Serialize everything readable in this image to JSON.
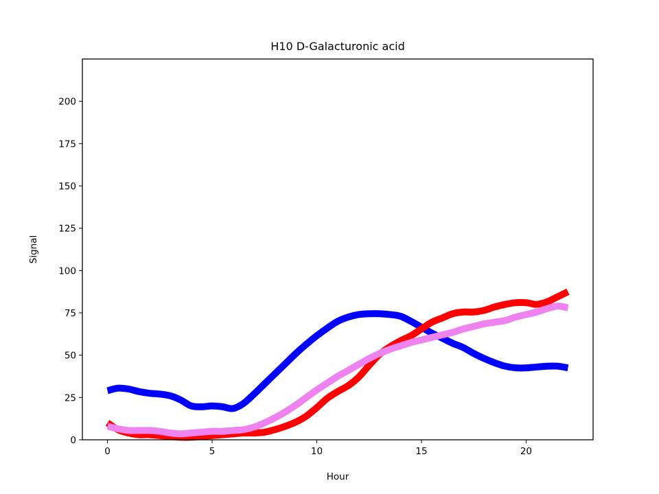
{
  "chart_data": {
    "type": "line",
    "title": "H10 D-Galacturonic acid",
    "xlabel": "Hour",
    "ylabel": "Signal",
    "xlim": [
      -1.2,
      23.2
    ],
    "ylim": [
      0,
      225
    ],
    "xticks": [
      0,
      5,
      10,
      15,
      20
    ],
    "yticks": [
      0,
      25,
      50,
      75,
      100,
      125,
      150,
      175,
      200
    ],
    "grid": false,
    "legend": "none",
    "series": [
      {
        "color": "#0000ff",
        "x": [
          0,
          0.5,
          1,
          1.5,
          2,
          2.5,
          3,
          3.5,
          4,
          4.5,
          5,
          5.5,
          6,
          6.5,
          7,
          7.5,
          8,
          8.5,
          9,
          9.5,
          10,
          10.5,
          11,
          11.5,
          12,
          12.5,
          13,
          13.5,
          14,
          14.5,
          15,
          15.5,
          16,
          16.5,
          17,
          17.5,
          18,
          18.5,
          19,
          19.5,
          20,
          20.5,
          21,
          21.5,
          22
        ],
        "values": [
          29,
          30.5,
          30,
          28.5,
          27.5,
          27,
          26,
          23.5,
          20,
          19.5,
          20,
          19.5,
          18.5,
          21.5,
          27,
          33,
          39,
          45,
          51,
          56.5,
          61.5,
          66,
          70,
          72.5,
          74,
          74.5,
          74.5,
          74,
          73,
          70,
          66.5,
          63,
          60,
          57,
          54.5,
          51,
          48,
          45.5,
          43.5,
          42.5,
          42.5,
          43,
          43.5,
          43.5,
          42.5
        ]
      },
      {
        "color": "#ff0000",
        "x": [
          0,
          0.5,
          1,
          1.5,
          2,
          2.5,
          3,
          3.5,
          4,
          4.5,
          5,
          5.5,
          6,
          6.5,
          7,
          7.5,
          8,
          8.5,
          9,
          9.5,
          10,
          10.5,
          11,
          11.5,
          12,
          12.5,
          13,
          13.5,
          14,
          14.5,
          15,
          15.5,
          16,
          16.5,
          17,
          17.5,
          18,
          18.5,
          19,
          19.5,
          20,
          20.5,
          21,
          21.5,
          22
        ],
        "values": [
          10,
          6,
          4,
          3,
          3,
          2.5,
          2,
          1.5,
          1.5,
          2,
          2.5,
          3,
          3.5,
          4,
          4,
          4.5,
          6,
          8,
          10.5,
          14,
          19,
          24.5,
          28.5,
          32,
          37,
          44,
          50.5,
          55,
          58.5,
          61.5,
          65.5,
          69.5,
          72,
          74.5,
          75.5,
          75.5,
          76.5,
          78.5,
          80,
          81,
          81,
          80,
          81.5,
          84.5,
          87.5
        ]
      },
      {
        "color": "#ee82ee",
        "x": [
          0,
          0.5,
          1,
          1.5,
          2,
          2.5,
          3,
          3.5,
          4,
          4.5,
          5,
          5.5,
          6,
          6.5,
          7,
          7.5,
          8,
          8.5,
          9,
          9.5,
          10,
          10.5,
          11,
          11.5,
          12,
          12.5,
          13,
          13.5,
          14,
          14.5,
          15,
          15.5,
          16,
          16.5,
          17,
          17.5,
          18,
          18.5,
          19,
          19.5,
          20,
          20.5,
          21,
          21.5,
          22
        ],
        "values": [
          8,
          6.5,
          5.5,
          5.5,
          5.5,
          5,
          4,
          3.5,
          4,
          4.5,
          5,
          5,
          5.5,
          6,
          7.5,
          10,
          13,
          16.5,
          20.5,
          25,
          29.5,
          33.5,
          37.5,
          41,
          44.5,
          48,
          51,
          53.5,
          55.5,
          57.5,
          59,
          60.5,
          62,
          63.5,
          65.5,
          67,
          68.5,
          69.5,
          70.5,
          72.5,
          74,
          75.5,
          77.5,
          79,
          78
        ]
      }
    ]
  }
}
